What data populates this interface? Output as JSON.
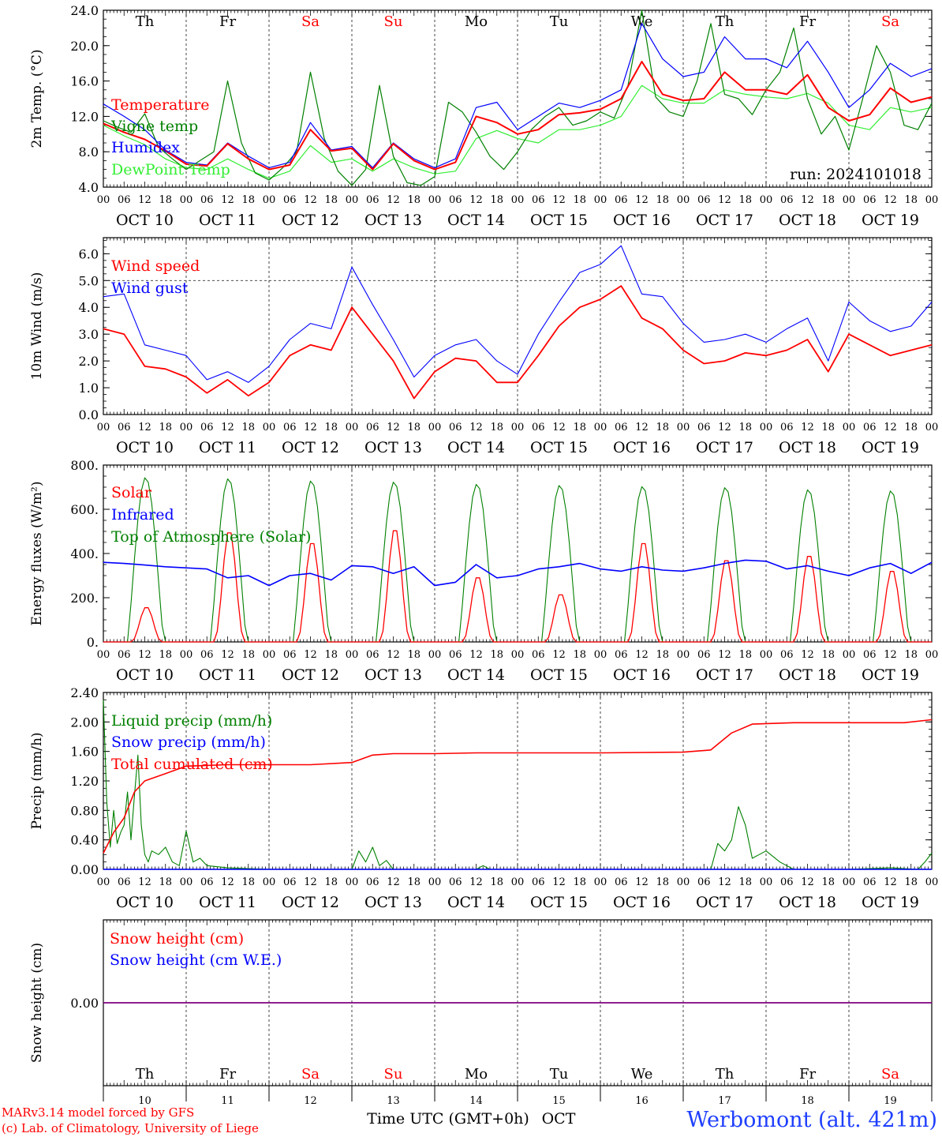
{
  "colors": {
    "red": "#ff0000",
    "blue": "#0000ff",
    "dark_green": "#008000",
    "light_green": "#33ee33",
    "purple": "#800080",
    "weekday": "#000000",
    "weekend": "#ff0000",
    "title_blue": "#1f3fff",
    "credit_red": "#ff0000"
  },
  "days": [
    "Th",
    "Fr",
    "Sa",
    "Su",
    "Mo",
    "Tu",
    "We",
    "Th",
    "Fr",
    "Sa"
  ],
  "weekend_flags": [
    false,
    false,
    true,
    true,
    false,
    false,
    false,
    false,
    false,
    true
  ],
  "hour_ticks": [
    "00",
    "06",
    "12",
    "18"
  ],
  "date_labels": [
    "OCT 10",
    "OCT 11",
    "OCT 12",
    "OCT 13",
    "OCT 14",
    "OCT 15",
    "OCT 16",
    "OCT 17",
    "OCT 18",
    "OCT 19"
  ],
  "bottom_day_numbers": [
    "10",
    "11",
    "12",
    "13",
    "14",
    "15",
    "16",
    "17",
    "18",
    "19"
  ],
  "footer": {
    "xlabel": "Time UTC (GMT+0h)",
    "month": "OCT",
    "credit_line1": "MARv3.14 model forced by GFS",
    "credit_line2": "(c) Lab. of Climatology, University of Liege",
    "station": "Werbomont (alt. 421m)"
  },
  "chart_data": [
    {
      "type": "line",
      "id": "temp",
      "ylabel": "2m Temp. (°C)",
      "ylim": [
        4.0,
        24.0
      ],
      "yticks": [
        "24.0",
        "20.0",
        "16.0",
        "12.0",
        "8.0",
        "4.0"
      ],
      "annotation": "run: 2024101018",
      "x_unit": "hours since 00 UTC OCT 10",
      "series": [
        {
          "name": "Temperature",
          "color": "red",
          "x": [
            0,
            6,
            12,
            18,
            24,
            30,
            36,
            42,
            48,
            54,
            60,
            66,
            72,
            78,
            84,
            90,
            96,
            102,
            108,
            114,
            120,
            126,
            132,
            138,
            144,
            150,
            156,
            162,
            168,
            174,
            180,
            186,
            192,
            198,
            204,
            210,
            216,
            222,
            228,
            234,
            240
          ],
          "values": [
            11.2,
            10.2,
            9.4,
            8.1,
            6.6,
            6.4,
            8.9,
            7.2,
            6.0,
            6.5,
            10.5,
            8.1,
            8.4,
            6.0,
            8.9,
            7.0,
            6.0,
            6.8,
            12.0,
            11.3,
            10.0,
            10.5,
            12.2,
            12.4,
            12.8,
            14.0,
            18.2,
            14.5,
            13.8,
            14.0,
            17.0,
            15.0,
            15.0,
            14.5,
            16.7,
            13.0,
            11.5,
            12.2,
            15.2,
            13.6,
            14.2
          ]
        },
        {
          "name": "Vigne temp",
          "color": "dark_green",
          "x": [
            0,
            4,
            8,
            12,
            16,
            20,
            24,
            28,
            32,
            36,
            40,
            44,
            48,
            52,
            56,
            60,
            64,
            68,
            72,
            76,
            80,
            84,
            88,
            92,
            96,
            100,
            104,
            108,
            112,
            116,
            120,
            124,
            128,
            132,
            136,
            140,
            144,
            148,
            152,
            156,
            160,
            164,
            168,
            172,
            176,
            180,
            184,
            188,
            192,
            196,
            200,
            204,
            208,
            212,
            216,
            220,
            224,
            228,
            232,
            236,
            240
          ],
          "values": [
            11.5,
            10.8,
            10.2,
            12.3,
            8.5,
            7.2,
            6.0,
            7.0,
            8.0,
            16.0,
            9.0,
            5.6,
            4.8,
            6.2,
            8.0,
            17.0,
            9.5,
            5.8,
            4.2,
            6.0,
            15.5,
            7.5,
            4.5,
            4.2,
            5.2,
            13.6,
            12.5,
            10.2,
            7.5,
            6.0,
            8.0,
            10.5,
            12.0,
            13.0,
            11.0,
            11.5,
            12.5,
            11.8,
            15.5,
            24.5,
            14.2,
            12.5,
            12.0,
            16.0,
            22.5,
            14.5,
            14.0,
            12.2,
            15.0,
            17.0,
            22.0,
            14.0,
            10.0,
            12.0,
            8.2,
            14.0,
            20.0,
            17.0,
            11.0,
            10.5,
            13.5
          ]
        },
        {
          "name": "Humidex",
          "color": "blue",
          "x": [
            0,
            6,
            12,
            18,
            24,
            30,
            36,
            42,
            48,
            54,
            60,
            66,
            72,
            78,
            84,
            90,
            96,
            102,
            108,
            114,
            120,
            126,
            132,
            138,
            144,
            150,
            156,
            162,
            168,
            174,
            180,
            186,
            192,
            198,
            204,
            210,
            216,
            222,
            228,
            234,
            240
          ],
          "values": [
            13.4,
            12.0,
            10.5,
            8.2,
            6.8,
            6.5,
            9.0,
            7.5,
            6.2,
            6.8,
            11.3,
            8.2,
            8.6,
            6.2,
            9.0,
            7.2,
            6.2,
            7.2,
            13.0,
            13.6,
            10.5,
            12.0,
            13.5,
            13.0,
            13.8,
            15.0,
            22.5,
            18.5,
            16.5,
            17.0,
            21.0,
            18.5,
            18.5,
            17.5,
            20.5,
            17.0,
            13.0,
            15.0,
            18.0,
            16.5,
            17.4
          ]
        },
        {
          "name": "DewPoint Temp",
          "color": "light_green",
          "x": [
            0,
            6,
            12,
            18,
            24,
            30,
            36,
            42,
            48,
            54,
            60,
            66,
            72,
            78,
            84,
            90,
            96,
            102,
            108,
            114,
            120,
            126,
            132,
            138,
            144,
            150,
            156,
            162,
            168,
            174,
            180,
            186,
            192,
            198,
            204,
            210,
            216,
            222,
            228,
            234,
            240
          ],
          "values": [
            11.0,
            9.8,
            8.8,
            7.2,
            6.2,
            6.0,
            7.2,
            6.0,
            5.0,
            5.8,
            8.7,
            6.8,
            7.2,
            5.8,
            7.2,
            6.2,
            5.5,
            5.8,
            9.5,
            10.4,
            9.5,
            9.0,
            10.5,
            10.5,
            11.0,
            12.0,
            15.5,
            14.0,
            13.5,
            13.5,
            15.0,
            14.5,
            14.2,
            14.0,
            14.6,
            13.5,
            11.0,
            10.5,
            13.0,
            12.5,
            13.0
          ]
        }
      ]
    },
    {
      "type": "line",
      "id": "wind",
      "ylabel": "10m Wind (m/s)",
      "ylim": [
        0.0,
        6.6
      ],
      "yticks": [
        "6.0",
        "5.0",
        "4.0",
        "3.0",
        "2.0",
        "1.0",
        "0.0"
      ],
      "reference_line": 5.0,
      "x_unit": "hours since 00 UTC OCT 10",
      "series": [
        {
          "name": "Wind speed",
          "color": "red",
          "x": [
            0,
            6,
            12,
            18,
            24,
            30,
            36,
            42,
            48,
            54,
            60,
            66,
            72,
            78,
            84,
            90,
            96,
            102,
            108,
            114,
            120,
            126,
            132,
            138,
            144,
            150,
            156,
            162,
            168,
            174,
            180,
            186,
            192,
            198,
            204,
            210,
            216,
            222,
            228,
            234,
            240
          ],
          "values": [
            3.2,
            3.0,
            1.8,
            1.7,
            1.4,
            0.8,
            1.3,
            0.7,
            1.2,
            2.2,
            2.6,
            2.4,
            4.0,
            3.0,
            2.0,
            0.6,
            1.6,
            2.1,
            2.0,
            1.2,
            1.2,
            2.2,
            3.3,
            4.0,
            4.3,
            4.8,
            3.6,
            3.2,
            2.4,
            1.9,
            2.0,
            2.3,
            2.2,
            2.4,
            2.8,
            1.6,
            3.0,
            2.6,
            2.2,
            2.4,
            2.6
          ]
        },
        {
          "name": "Wind gust",
          "color": "blue",
          "x": [
            0,
            6,
            12,
            18,
            24,
            30,
            36,
            42,
            48,
            54,
            60,
            66,
            72,
            78,
            84,
            90,
            96,
            102,
            108,
            114,
            120,
            126,
            132,
            138,
            144,
            150,
            156,
            162,
            168,
            174,
            180,
            186,
            192,
            198,
            204,
            210,
            216,
            222,
            228,
            234,
            240
          ],
          "values": [
            4.4,
            4.5,
            2.6,
            2.4,
            2.2,
            1.3,
            1.6,
            1.2,
            1.8,
            2.8,
            3.4,
            3.2,
            5.5,
            4.1,
            2.8,
            1.4,
            2.2,
            2.6,
            2.8,
            2.0,
            1.5,
            3.0,
            4.2,
            5.3,
            5.6,
            6.3,
            4.5,
            4.4,
            3.4,
            2.7,
            2.8,
            3.0,
            2.7,
            3.2,
            3.6,
            2.0,
            4.2,
            3.5,
            3.1,
            3.3,
            4.2
          ]
        }
      ]
    },
    {
      "type": "line",
      "id": "flux",
      "ylabel": "Energy fluxes (W/m²)",
      "ylim": [
        0,
        800
      ],
      "yticks": [
        "800.",
        "600.",
        "400.",
        "200.",
        "0."
      ],
      "x_unit": "hours since 00 UTC OCT 10",
      "series": [
        {
          "name": "Solar",
          "color": "red",
          "solar_peaks": [
            160,
            510,
            460,
            520,
            300,
            220,
            460,
            380,
            400,
            330
          ]
        },
        {
          "name": "Infrared",
          "color": "blue",
          "x": [
            0,
            6,
            12,
            18,
            24,
            30,
            36,
            42,
            48,
            54,
            60,
            66,
            72,
            78,
            84,
            90,
            96,
            102,
            108,
            114,
            120,
            126,
            132,
            138,
            144,
            150,
            156,
            162,
            168,
            174,
            180,
            186,
            192,
            198,
            204,
            210,
            216,
            222,
            228,
            234,
            240
          ],
          "values": [
            360,
            355,
            348,
            340,
            335,
            330,
            290,
            300,
            255,
            300,
            310,
            280,
            345,
            340,
            310,
            340,
            255,
            270,
            350,
            290,
            300,
            330,
            340,
            355,
            330,
            320,
            340,
            325,
            320,
            335,
            355,
            370,
            365,
            330,
            345,
            320,
            300,
            335,
            355,
            310,
            360
          ]
        },
        {
          "name": "Top of Atmosphere (Solar)",
          "color": "dark_green",
          "toa_peaks": [
            745,
            740,
            730,
            725,
            715,
            710,
            705,
            700,
            690,
            685
          ]
        }
      ]
    },
    {
      "type": "line",
      "id": "precip",
      "ylabel": "Precip (mm/h)",
      "ylim": [
        0.0,
        2.4
      ],
      "yticks": [
        "2.40",
        "2.00",
        "1.60",
        "1.20",
        "0.80",
        "0.40",
        "0.00"
      ],
      "x_unit": "hours since 00 UTC OCT 10",
      "series": [
        {
          "name": "Liquid precip (mm/h)",
          "color": "dark_green",
          "x": [
            0,
            1,
            2,
            3,
            4,
            5,
            6,
            7,
            8,
            9,
            10,
            11,
            12,
            13,
            14,
            16,
            18,
            20,
            22,
            24,
            26,
            28,
            30,
            36,
            48,
            72,
            74,
            76,
            78,
            80,
            82,
            84,
            96,
            108,
            110,
            112,
            120,
            144,
            168,
            176,
            178,
            180,
            182,
            184,
            186,
            188,
            190,
            192,
            196,
            200,
            204,
            216,
            228,
            236,
            238,
            240
          ],
          "values": [
            2.3,
            0.9,
            0.3,
            0.8,
            0.35,
            0.5,
            0.6,
            1.05,
            0.4,
            1.0,
            1.55,
            0.6,
            0.2,
            0.1,
            0.25,
            0.2,
            0.3,
            0.1,
            0.05,
            0.52,
            0.1,
            0.15,
            0.05,
            0.02,
            0.0,
            0.0,
            0.25,
            0.1,
            0.3,
            0.05,
            0.12,
            0.0,
            0.0,
            0.0,
            0.05,
            0.0,
            0.0,
            0.0,
            0.0,
            0.0,
            0.35,
            0.25,
            0.4,
            0.85,
            0.6,
            0.15,
            0.2,
            0.25,
            0.1,
            0.0,
            0.0,
            0.0,
            0.02,
            0.0,
            0.1,
            0.22
          ]
        },
        {
          "name": "Snow precip (mm/h)",
          "color": "blue",
          "x": [
            0,
            240
          ],
          "values": [
            0.0,
            0.0
          ]
        },
        {
          "name": "Total cumulated (cm)",
          "color": "red",
          "x": [
            0,
            3,
            6,
            9,
            12,
            18,
            24,
            36,
            48,
            60,
            72,
            78,
            84,
            96,
            108,
            120,
            144,
            168,
            176,
            182,
            188,
            200,
            216,
            232,
            240
          ],
          "values": [
            0.22,
            0.5,
            0.7,
            1.05,
            1.2,
            1.3,
            1.4,
            1.42,
            1.42,
            1.42,
            1.45,
            1.55,
            1.57,
            1.57,
            1.58,
            1.58,
            1.58,
            1.59,
            1.62,
            1.85,
            1.97,
            1.99,
            1.99,
            1.99,
            2.03
          ]
        }
      ]
    },
    {
      "type": "line",
      "id": "snow",
      "ylabel": "Snow height (cm)",
      "ylim": [
        -1,
        1
      ],
      "yticks": [
        "0.00"
      ],
      "x_unit": "hours since 00 UTC OCT 10",
      "series": [
        {
          "name": "Snow height (cm)",
          "color": "red",
          "x": [
            0,
            240
          ],
          "values": [
            0,
            0
          ]
        },
        {
          "name": "Snow height (cm W.E.)",
          "color": "blue",
          "x": [
            0,
            240
          ],
          "values": [
            0,
            0
          ]
        }
      ]
    }
  ]
}
